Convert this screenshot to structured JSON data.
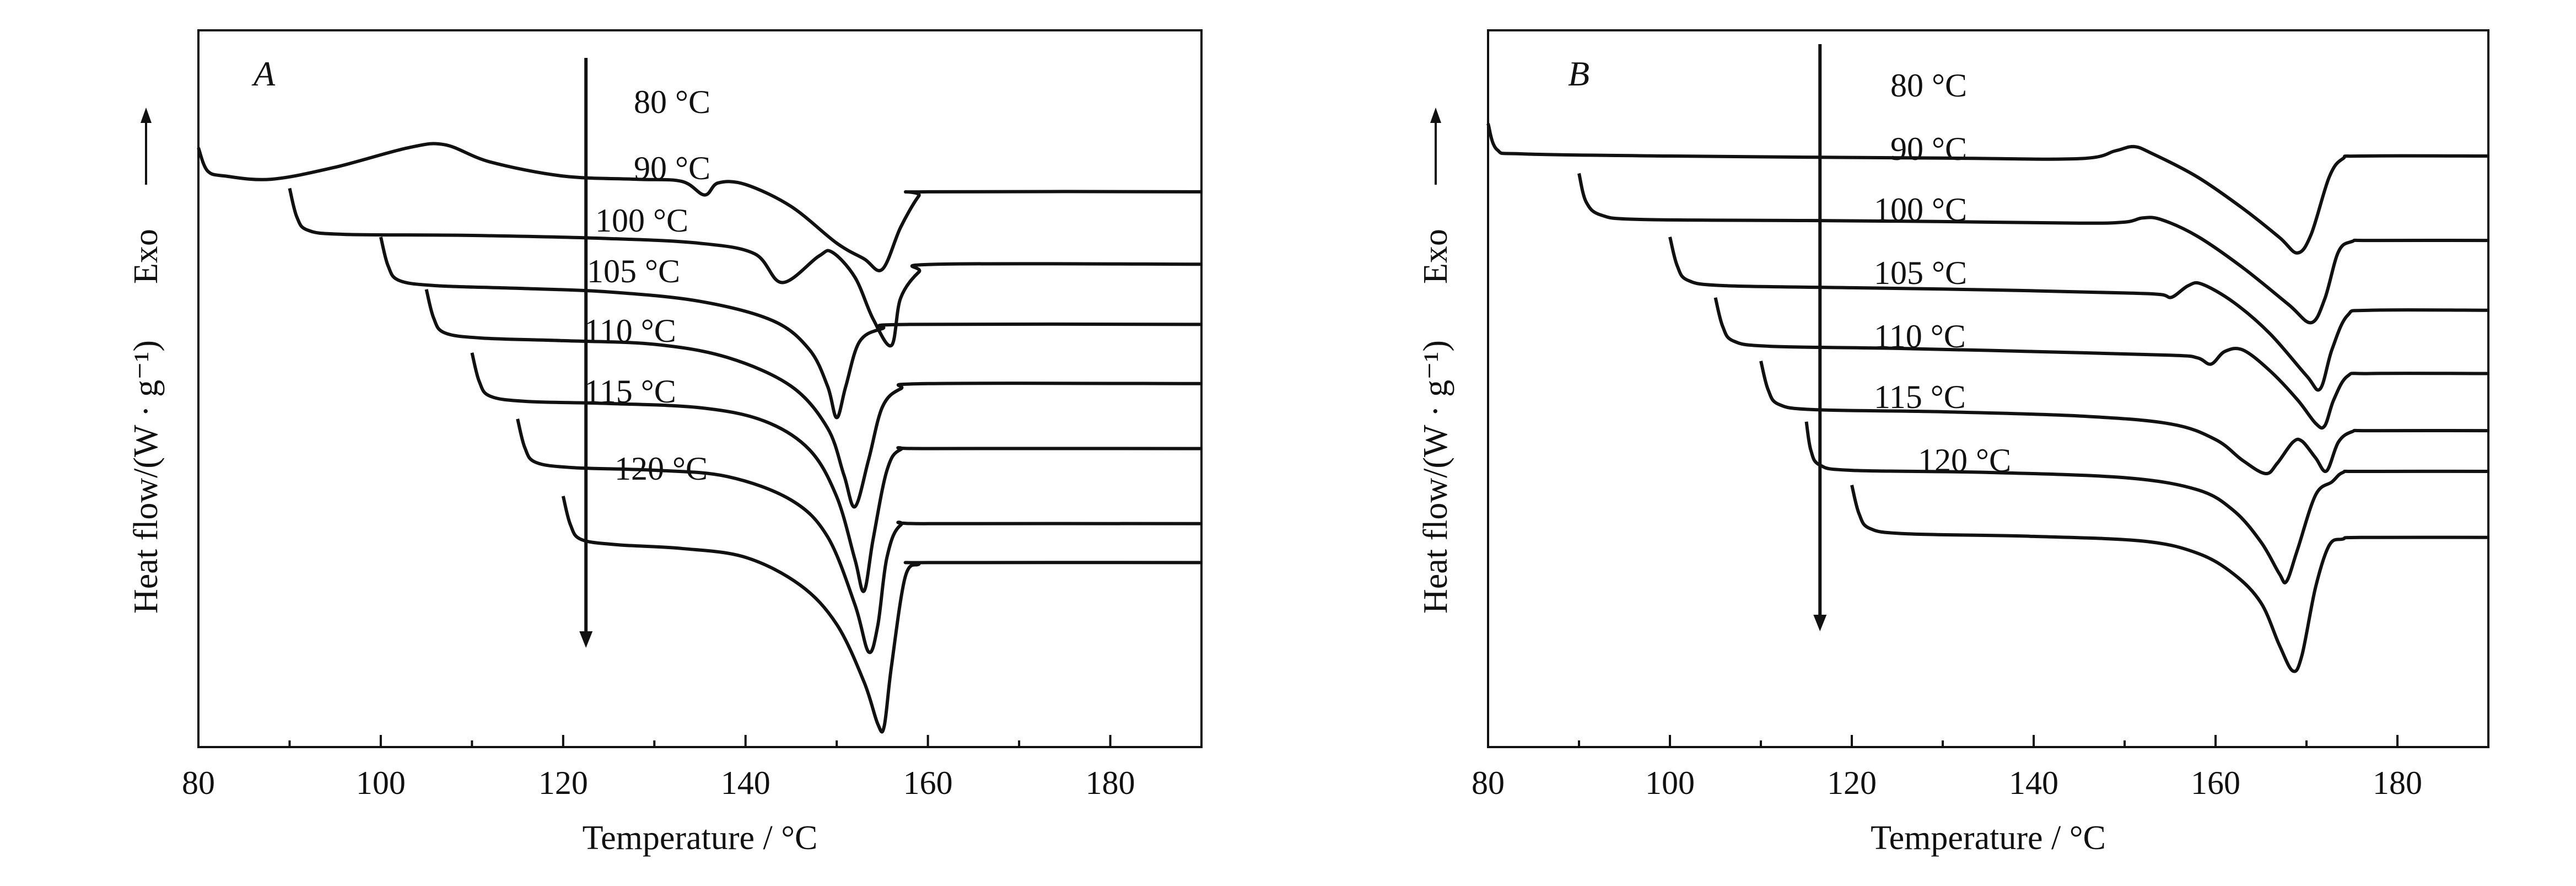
{
  "chart_data": [
    {
      "type": "line",
      "panel_label": "A",
      "xlabel": "Temperature / °C",
      "ylabel": "Heat flow/(W · g⁻¹)",
      "ylabel_direction": "Exo",
      "xlim": [
        80,
        190
      ],
      "xticks": [
        "80",
        "100",
        "120",
        "140",
        "160",
        "180"
      ],
      "y_ticks_shown": false,
      "grid": false,
      "series": [
        {
          "name": "80 °C",
          "baseline_start": 80,
          "points": [
            [
              80,
              0.62
            ],
            [
              81,
              0.18
            ],
            [
              83,
              0.08
            ],
            [
              88,
              0.02
            ],
            [
              95,
              0.25
            ],
            [
              103,
              0.62
            ],
            [
              107,
              0.68
            ],
            [
              112,
              0.35
            ],
            [
              120,
              0.08
            ],
            [
              128,
              0.02
            ],
            [
              133,
              -0.02
            ],
            [
              135.5,
              -0.28
            ],
            [
              137,
              -0.05
            ],
            [
              140,
              -0.08
            ],
            [
              145,
              -0.5
            ],
            [
              150,
              -1.2
            ],
            [
              153,
              -1.5
            ],
            [
              155,
              -1.7
            ],
            [
              157,
              -0.9
            ],
            [
              159,
              -0.3
            ],
            [
              160,
              -0.22
            ],
            [
              190,
              -0.22
            ]
          ]
        },
        {
          "name": "90 °C",
          "baseline_start": 90,
          "points": [
            [
              90,
              0.9
            ],
            [
              90.8,
              0.35
            ],
            [
              92,
              0.1
            ],
            [
              96,
              0.02
            ],
            [
              110,
              0.0
            ],
            [
              125,
              -0.06
            ],
            [
              135,
              -0.15
            ],
            [
              141,
              -0.35
            ],
            [
              144,
              -0.9
            ],
            [
              148,
              -0.4
            ],
            [
              149.5,
              -0.32
            ],
            [
              152,
              -0.8
            ],
            [
              154,
              -1.6
            ],
            [
              156,
              -2.1
            ],
            [
              157,
              -1.2
            ],
            [
              159,
              -0.7
            ],
            [
              161,
              -0.55
            ],
            [
              190,
              -0.55
            ]
          ]
        },
        {
          "name": "100 °C",
          "baseline_start": 100,
          "points": [
            [
              100,
              0.95
            ],
            [
              100.8,
              0.4
            ],
            [
              102,
              0.12
            ],
            [
              106,
              0.02
            ],
            [
              115,
              -0.03
            ],
            [
              125,
              -0.1
            ],
            [
              135,
              -0.28
            ],
            [
              143,
              -0.65
            ],
            [
              147,
              -1.2
            ],
            [
              149,
              -1.9
            ],
            [
              150,
              -2.5
            ],
            [
              151,
              -1.9
            ],
            [
              152.5,
              -1.05
            ],
            [
              155,
              -0.8
            ],
            [
              158,
              -0.72
            ],
            [
              190,
              -0.72
            ]
          ]
        },
        {
          "name": "105 °C",
          "baseline_start": 105,
          "points": [
            [
              105,
              0.95
            ],
            [
              105.8,
              0.4
            ],
            [
              107,
              0.12
            ],
            [
              111,
              0.02
            ],
            [
              120,
              -0.03
            ],
            [
              130,
              -0.1
            ],
            [
              138,
              -0.35
            ],
            [
              145,
              -0.9
            ],
            [
              149,
              -1.7
            ],
            [
              150.8,
              -2.6
            ],
            [
              152,
              -3.2
            ],
            [
              153.5,
              -2.3
            ],
            [
              155,
              -1.3
            ],
            [
              157,
              -0.95
            ],
            [
              160,
              -0.85
            ],
            [
              190,
              -0.85
            ]
          ]
        },
        {
          "name": "110 °C",
          "baseline_start": 110,
          "points": [
            [
              110,
              0.95
            ],
            [
              110.8,
              0.4
            ],
            [
              112,
              0.12
            ],
            [
              116,
              0.02
            ],
            [
              125,
              -0.02
            ],
            [
              135,
              -0.1
            ],
            [
              142,
              -0.35
            ],
            [
              147,
              -0.9
            ],
            [
              150,
              -1.8
            ],
            [
              152,
              -3.0
            ],
            [
              153,
              -3.6
            ],
            [
              154,
              -2.6
            ],
            [
              155.5,
              -1.3
            ],
            [
              157,
              -0.9
            ],
            [
              160,
              -0.88
            ],
            [
              190,
              -0.88
            ]
          ]
        },
        {
          "name": "115 °C",
          "baseline_start": 115,
          "points": [
            [
              115,
              0.95
            ],
            [
              115.8,
              0.4
            ],
            [
              117,
              0.12
            ],
            [
              121,
              0.02
            ],
            [
              130,
              -0.03
            ],
            [
              138,
              -0.15
            ],
            [
              145,
              -0.6
            ],
            [
              149,
              -1.3
            ],
            [
              152,
              -2.6
            ],
            [
              153.5,
              -3.5
            ],
            [
              154.5,
              -3.0
            ],
            [
              155.5,
              -1.7
            ],
            [
              157,
              -1.08
            ],
            [
              160,
              -1.05
            ],
            [
              190,
              -1.05
            ]
          ]
        },
        {
          "name": "120 °C",
          "baseline_start": 120,
          "points": [
            [
              120,
              0.95
            ],
            [
              120.8,
              0.4
            ],
            [
              122,
              0.12
            ],
            [
              126,
              0.02
            ],
            [
              133,
              -0.05
            ],
            [
              140,
              -0.22
            ],
            [
              146,
              -0.75
            ],
            [
              150,
              -1.5
            ],
            [
              153,
              -2.6
            ],
            [
              154.5,
              -3.4
            ],
            [
              155.2,
              -3.45
            ],
            [
              156,
              -2.3
            ],
            [
              157.5,
              -0.6
            ],
            [
              159,
              -0.35
            ],
            [
              160,
              -0.32
            ],
            [
              190,
              -0.32
            ]
          ]
        }
      ],
      "annotations": [
        "80 °C",
        "90 °C",
        "100 °C",
        "105 °C",
        "110 °C",
        "115 °C",
        "120 °C"
      ],
      "arrow_x": 122.5
    },
    {
      "type": "line",
      "panel_label": "B",
      "xlabel": "Temperature / °C",
      "ylabel": "Heat flow/(W · g⁻¹)",
      "ylabel_direction": "Exo",
      "xlim": [
        80,
        190
      ],
      "xticks": [
        "80",
        "100",
        "120",
        "140",
        "160",
        "180"
      ],
      "y_ticks_shown": false,
      "grid": false,
      "series": [
        {
          "name": "80 °C",
          "baseline_start": 80,
          "points": [
            [
              80,
              0.62
            ],
            [
              81,
              0.12
            ],
            [
              84,
              0.04
            ],
            [
              100,
              0.0
            ],
            [
              130,
              -0.04
            ],
            [
              145,
              -0.05
            ],
            [
              149,
              0.1
            ],
            [
              151,
              0.18
            ],
            [
              153,
              0.05
            ],
            [
              158,
              -0.4
            ],
            [
              163,
              -1.0
            ],
            [
              167,
              -1.55
            ],
            [
              169,
              -1.85
            ],
            [
              170.5,
              -1.5
            ],
            [
              172.5,
              -0.4
            ],
            [
              174,
              -0.05
            ],
            [
              176,
              0.0
            ],
            [
              190,
              0.0
            ]
          ]
        },
        {
          "name": "90 °C",
          "baseline_start": 90,
          "points": [
            [
              90,
              0.9
            ],
            [
              90.8,
              0.35
            ],
            [
              92.5,
              0.1
            ],
            [
              97,
              0.02
            ],
            [
              115,
              0.0
            ],
            [
              130,
              -0.02
            ],
            [
              145,
              -0.05
            ],
            [
              150,
              -0.03
            ],
            [
              152,
              0.05
            ],
            [
              154,
              0.02
            ],
            [
              158,
              -0.3
            ],
            [
              163,
              -0.9
            ],
            [
              168,
              -1.6
            ],
            [
              170.5,
              -1.95
            ],
            [
              172,
              -1.5
            ],
            [
              173.5,
              -0.6
            ],
            [
              175,
              -0.4
            ],
            [
              177,
              -0.38
            ],
            [
              190,
              -0.38
            ]
          ]
        },
        {
          "name": "100 °C",
          "baseline_start": 100,
          "points": [
            [
              100,
              0.95
            ],
            [
              100.8,
              0.4
            ],
            [
              102,
              0.12
            ],
            [
              106,
              0.02
            ],
            [
              120,
              -0.02
            ],
            [
              135,
              -0.06
            ],
            [
              150,
              -0.12
            ],
            [
              154,
              -0.15
            ],
            [
              155.2,
              -0.2
            ],
            [
              157,
              0.02
            ],
            [
              158.5,
              0.05
            ],
            [
              162,
              -0.3
            ],
            [
              166,
              -0.9
            ],
            [
              170,
              -1.7
            ],
            [
              171.5,
              -1.95
            ],
            [
              172.8,
              -1.2
            ],
            [
              174.5,
              -0.55
            ],
            [
              177,
              -0.45
            ],
            [
              190,
              -0.45
            ]
          ]
        },
        {
          "name": "105 °C",
          "baseline_start": 105,
          "points": [
            [
              105,
              0.95
            ],
            [
              105.8,
              0.4
            ],
            [
              107,
              0.12
            ],
            [
              111,
              0.02
            ],
            [
              125,
              -0.02
            ],
            [
              140,
              -0.08
            ],
            [
              155,
              -0.15
            ],
            [
              158,
              -0.2
            ],
            [
              159.5,
              -0.32
            ],
            [
              161,
              -0.08
            ],
            [
              163,
              -0.05
            ],
            [
              166,
              -0.45
            ],
            [
              169,
              -1.0
            ],
            [
              171,
              -1.45
            ],
            [
              172,
              -1.5
            ],
            [
              173,
              -1.0
            ],
            [
              174.5,
              -0.55
            ],
            [
              177,
              -0.5
            ],
            [
              190,
              -0.5
            ]
          ]
        },
        {
          "name": "110 °C",
          "baseline_start": 110,
          "points": [
            [
              110,
              0.95
            ],
            [
              110.8,
              0.4
            ],
            [
              112,
              0.12
            ],
            [
              116,
              0.02
            ],
            [
              130,
              -0.02
            ],
            [
              145,
              -0.1
            ],
            [
              155,
              -0.25
            ],
            [
              160,
              -0.55
            ],
            [
              163,
              -0.95
            ],
            [
              165.5,
              -1.2
            ],
            [
              166.8,
              -1.0
            ],
            [
              168.5,
              -0.6
            ],
            [
              169.5,
              -0.58
            ],
            [
              171,
              -0.9
            ],
            [
              172.2,
              -1.15
            ],
            [
              173.5,
              -0.6
            ],
            [
              175,
              -0.4
            ],
            [
              177,
              -0.38
            ],
            [
              190,
              -0.38
            ]
          ]
        },
        {
          "name": "115 °C",
          "baseline_start": 115,
          "points": [
            [
              115,
              0.95
            ],
            [
              115.5,
              0.4
            ],
            [
              116.5,
              0.12
            ],
            [
              120,
              0.02
            ],
            [
              135,
              -0.02
            ],
            [
              150,
              -0.12
            ],
            [
              158,
              -0.35
            ],
            [
              162,
              -0.75
            ],
            [
              165,
              -1.35
            ],
            [
              167,
              -1.95
            ],
            [
              167.8,
              -2.1
            ],
            [
              169,
              -1.5
            ],
            [
              171,
              -0.45
            ],
            [
              172.8,
              -0.2
            ],
            [
              174,
              -0.02
            ],
            [
              176,
              0.0
            ],
            [
              190,
              0.0
            ]
          ]
        },
        {
          "name": "120 °C",
          "baseline_start": 120,
          "points": [
            [
              120,
              0.95
            ],
            [
              120.8,
              0.4
            ],
            [
              122,
              0.12
            ],
            [
              126,
              0.02
            ],
            [
              140,
              -0.03
            ],
            [
              152,
              -0.12
            ],
            [
              158,
              -0.35
            ],
            [
              162,
              -0.75
            ],
            [
              165,
              -1.3
            ],
            [
              167,
              -2.1
            ],
            [
              168.5,
              -2.6
            ],
            [
              169.5,
              -2.3
            ],
            [
              171,
              -1.0
            ],
            [
              172.5,
              -0.2
            ],
            [
              174,
              -0.08
            ],
            [
              176,
              -0.05
            ],
            [
              190,
              -0.05
            ]
          ]
        }
      ],
      "annotations": [
        "80 °C",
        "90 °C",
        "100 °C",
        "105 °C",
        "110 °C",
        "115 °C",
        "120 °C"
      ],
      "arrow_x": 116.5
    }
  ]
}
